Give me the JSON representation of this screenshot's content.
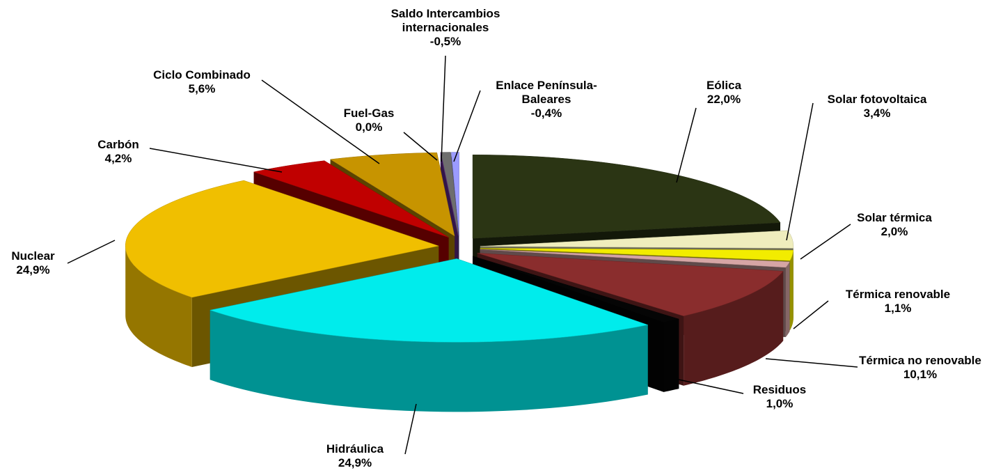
{
  "chart_data": {
    "type": "pie",
    "categories": [
      "Eólica",
      "Solar fotovoltaica",
      "Solar térmica",
      "Térmica renovable",
      "Térmica no renovable",
      "Residuos",
      "Hidráulica",
      "Nuclear",
      "Carbón",
      "Ciclo Combinado",
      "Fuel-Gas",
      "Saldo Intercambios internacionales",
      "Enlace Península-Baleares"
    ],
    "values": [
      22.0,
      3.4,
      2.0,
      1.1,
      10.1,
      1.0,
      24.9,
      24.9,
      4.2,
      5.6,
      0.0,
      -0.5,
      -0.4
    ],
    "value_labels": [
      "22,0%",
      "3,4%",
      "2,0%",
      "1,1%",
      "10,1%",
      "1,0%",
      "24,9%",
      "24,9%",
      "4,2%",
      "5,6%",
      "0,0%",
      "-0,5%",
      "-0,4%"
    ],
    "colors": [
      "#2b3514",
      "#efedbd",
      "#f2ec00",
      "#d6a5a5",
      "#8a2d2d",
      "#050505",
      "#00ecec",
      "#f0bf00",
      "#c00000",
      "#c79400",
      "#7030a0",
      "#6e6e6e",
      "#9b9bff"
    ]
  }
}
